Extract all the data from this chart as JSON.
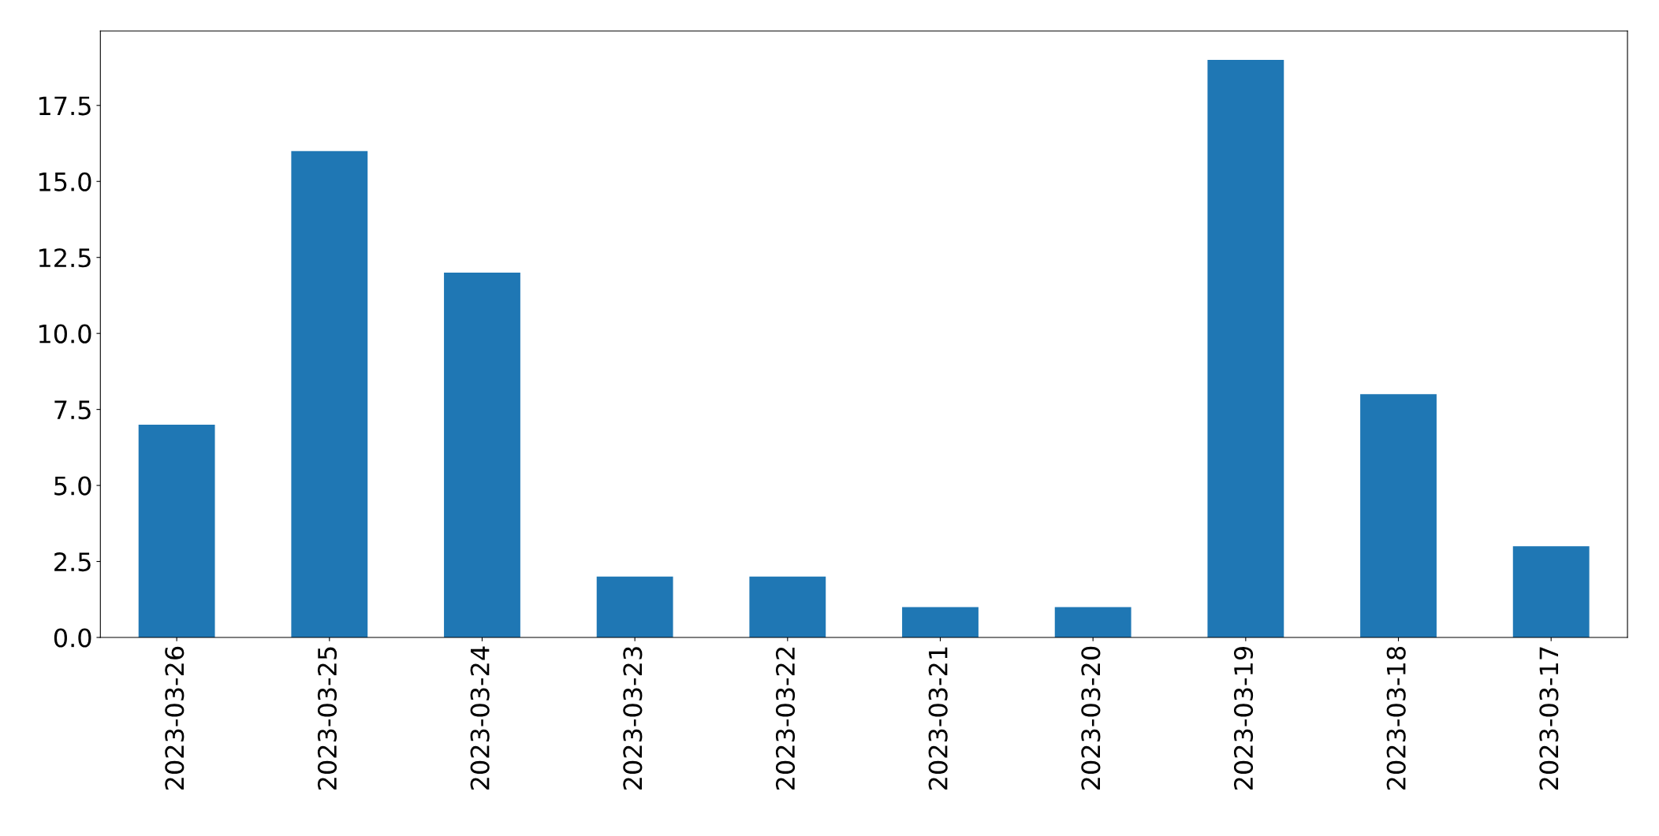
{
  "chart_data": {
    "type": "bar",
    "categories": [
      "2023-03-26",
      "2023-03-25",
      "2023-03-24",
      "2023-03-23",
      "2023-03-22",
      "2023-03-21",
      "2023-03-20",
      "2023-03-19",
      "2023-03-18",
      "2023-03-17"
    ],
    "values": [
      7,
      16,
      12,
      2,
      2,
      1,
      1,
      19,
      8,
      3
    ],
    "color": "#1f77b4",
    "ylim": [
      0,
      19.95
    ],
    "yticks": [
      {
        "value": 0,
        "label": "0.0"
      },
      {
        "value": 2.5,
        "label": "2.5"
      },
      {
        "value": 5,
        "label": "5.0"
      },
      {
        "value": 7.5,
        "label": "7.5"
      },
      {
        "value": 10,
        "label": "10.0"
      },
      {
        "value": 12.5,
        "label": "12.5"
      },
      {
        "value": 15,
        "label": "15.0"
      },
      {
        "value": 17.5,
        "label": "17.5"
      }
    ],
    "grid": false,
    "legend": false
  }
}
